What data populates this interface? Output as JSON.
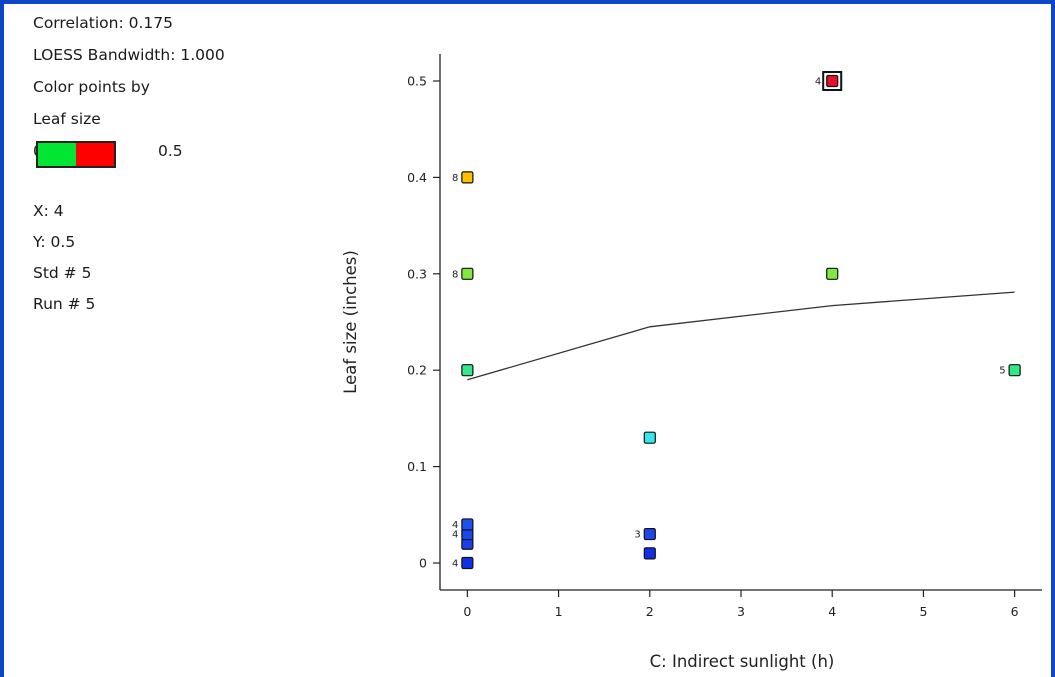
{
  "info_panel": {
    "correlation": "Correlation: 0.175",
    "bandwidth": "LOESS Bandwidth: 1.000",
    "color_by_heading": "Color points by",
    "color_by_factor": "Leaf size",
    "scale_min_label": "0",
    "scale_max_label": "0.5",
    "scale_colors": [
      "#00e632",
      "#ff0000"
    ],
    "selected_x": "X: 4",
    "selected_y": "Y: 0.5",
    "selected_std": "Std # 5",
    "selected_run": "Run # 5"
  },
  "chart_data": {
    "type": "scatter",
    "xlabel": "C: Indirect sunlight (h)",
    "ylabel": "Leaf size (inches)",
    "xlim": [
      -0.3,
      6.3
    ],
    "ylim": [
      -0.028,
      0.528
    ],
    "xticks": [
      "0",
      "1",
      "2",
      "3",
      "4",
      "5",
      "6"
    ],
    "yticks": [
      "0",
      "0.1",
      "0.2",
      "0.3",
      "0.4",
      "0.5"
    ],
    "grid": false,
    "points": [
      {
        "x": 0,
        "y": 0,
        "color": "#1030e8",
        "count_label": "4"
      },
      {
        "x": 0,
        "y": 0.02,
        "color": "#1a40ea",
        "count_label": ""
      },
      {
        "x": 0,
        "y": 0.03,
        "color": "#1a48ee",
        "count_label": "4"
      },
      {
        "x": 0,
        "y": 0.04,
        "color": "#2050f0",
        "count_label": "4"
      },
      {
        "x": 0,
        "y": 0.2,
        "color": "#33e888",
        "count_label": ""
      },
      {
        "x": 0,
        "y": 0.3,
        "color": "#80e840",
        "count_label": "8"
      },
      {
        "x": 0,
        "y": 0.4,
        "color": "#ffc000",
        "count_label": "8"
      },
      {
        "x": 2,
        "y": 0.01,
        "color": "#1030e8",
        "count_label": ""
      },
      {
        "x": 2,
        "y": 0.03,
        "color": "#1a48ee",
        "count_label": "3"
      },
      {
        "x": 2,
        "y": 0.13,
        "color": "#33e8ee",
        "count_label": ""
      },
      {
        "x": 4,
        "y": 0.3,
        "color": "#80e840",
        "count_label": ""
      },
      {
        "x": 4,
        "y": 0.5,
        "color": "#e8102a",
        "count_label": "4",
        "selected": true
      },
      {
        "x": 6,
        "y": 0.2,
        "color": "#33e888",
        "count_label": "5"
      }
    ],
    "loess_curve": {
      "x": [
        0,
        2,
        4,
        6
      ],
      "y": [
        0.19,
        0.245,
        0.267,
        0.281
      ]
    }
  }
}
